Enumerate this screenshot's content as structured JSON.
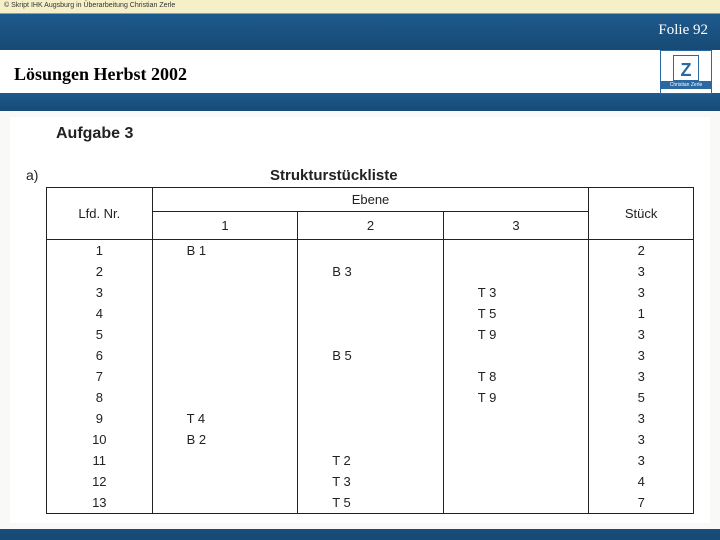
{
  "copyright": "© Skript IHK Augsburg in Überarbeitung Christian Zerle",
  "folie": "Folie 92",
  "title": "Lösungen Herbst 2002",
  "logo_text": "Christian Zerle",
  "doc": {
    "aufgabe": "Aufgabe 3",
    "sub": "a)",
    "table_title": "Strukturstückliste",
    "headers": {
      "lfd": "Lfd. Nr.",
      "ebene": "Ebene",
      "e1": "1",
      "e2": "2",
      "e3": "3",
      "stk": "Stück"
    },
    "rows": [
      {
        "n": "1",
        "e1": "B 1",
        "e2": "",
        "e3": "",
        "s": "2"
      },
      {
        "n": "2",
        "e1": "",
        "e2": "B 3",
        "e3": "",
        "s": "3"
      },
      {
        "n": "3",
        "e1": "",
        "e2": "",
        "e3": "T 3",
        "s": "3"
      },
      {
        "n": "4",
        "e1": "",
        "e2": "",
        "e3": "T 5",
        "s": "1"
      },
      {
        "n": "5",
        "e1": "",
        "e2": "",
        "e3": "T 9",
        "s": "3"
      },
      {
        "n": "6",
        "e1": "",
        "e2": "B 5",
        "e3": "",
        "s": "3"
      },
      {
        "n": "7",
        "e1": "",
        "e2": "",
        "e3": "T 8",
        "s": "3"
      },
      {
        "n": "8",
        "e1": "",
        "e2": "",
        "e3": "T 9",
        "s": "5"
      },
      {
        "n": "9",
        "e1": "T 4",
        "e2": "",
        "e3": "",
        "s": "3"
      },
      {
        "n": "10",
        "e1": "B 2",
        "e2": "",
        "e3": "",
        "s": "3"
      },
      {
        "n": "11",
        "e1": "",
        "e2": "T 2",
        "e3": "",
        "s": "3"
      },
      {
        "n": "12",
        "e1": "",
        "e2": "T 3",
        "e3": "",
        "s": "4"
      },
      {
        "n": "13",
        "e1": "",
        "e2": "T 5",
        "e3": "",
        "s": "7"
      }
    ]
  },
  "colors": {
    "header_bg": "#1a4d7a",
    "top_bar_bg": "#f5f0c8",
    "scan_bg": "#ffffff",
    "border": "#222222"
  }
}
